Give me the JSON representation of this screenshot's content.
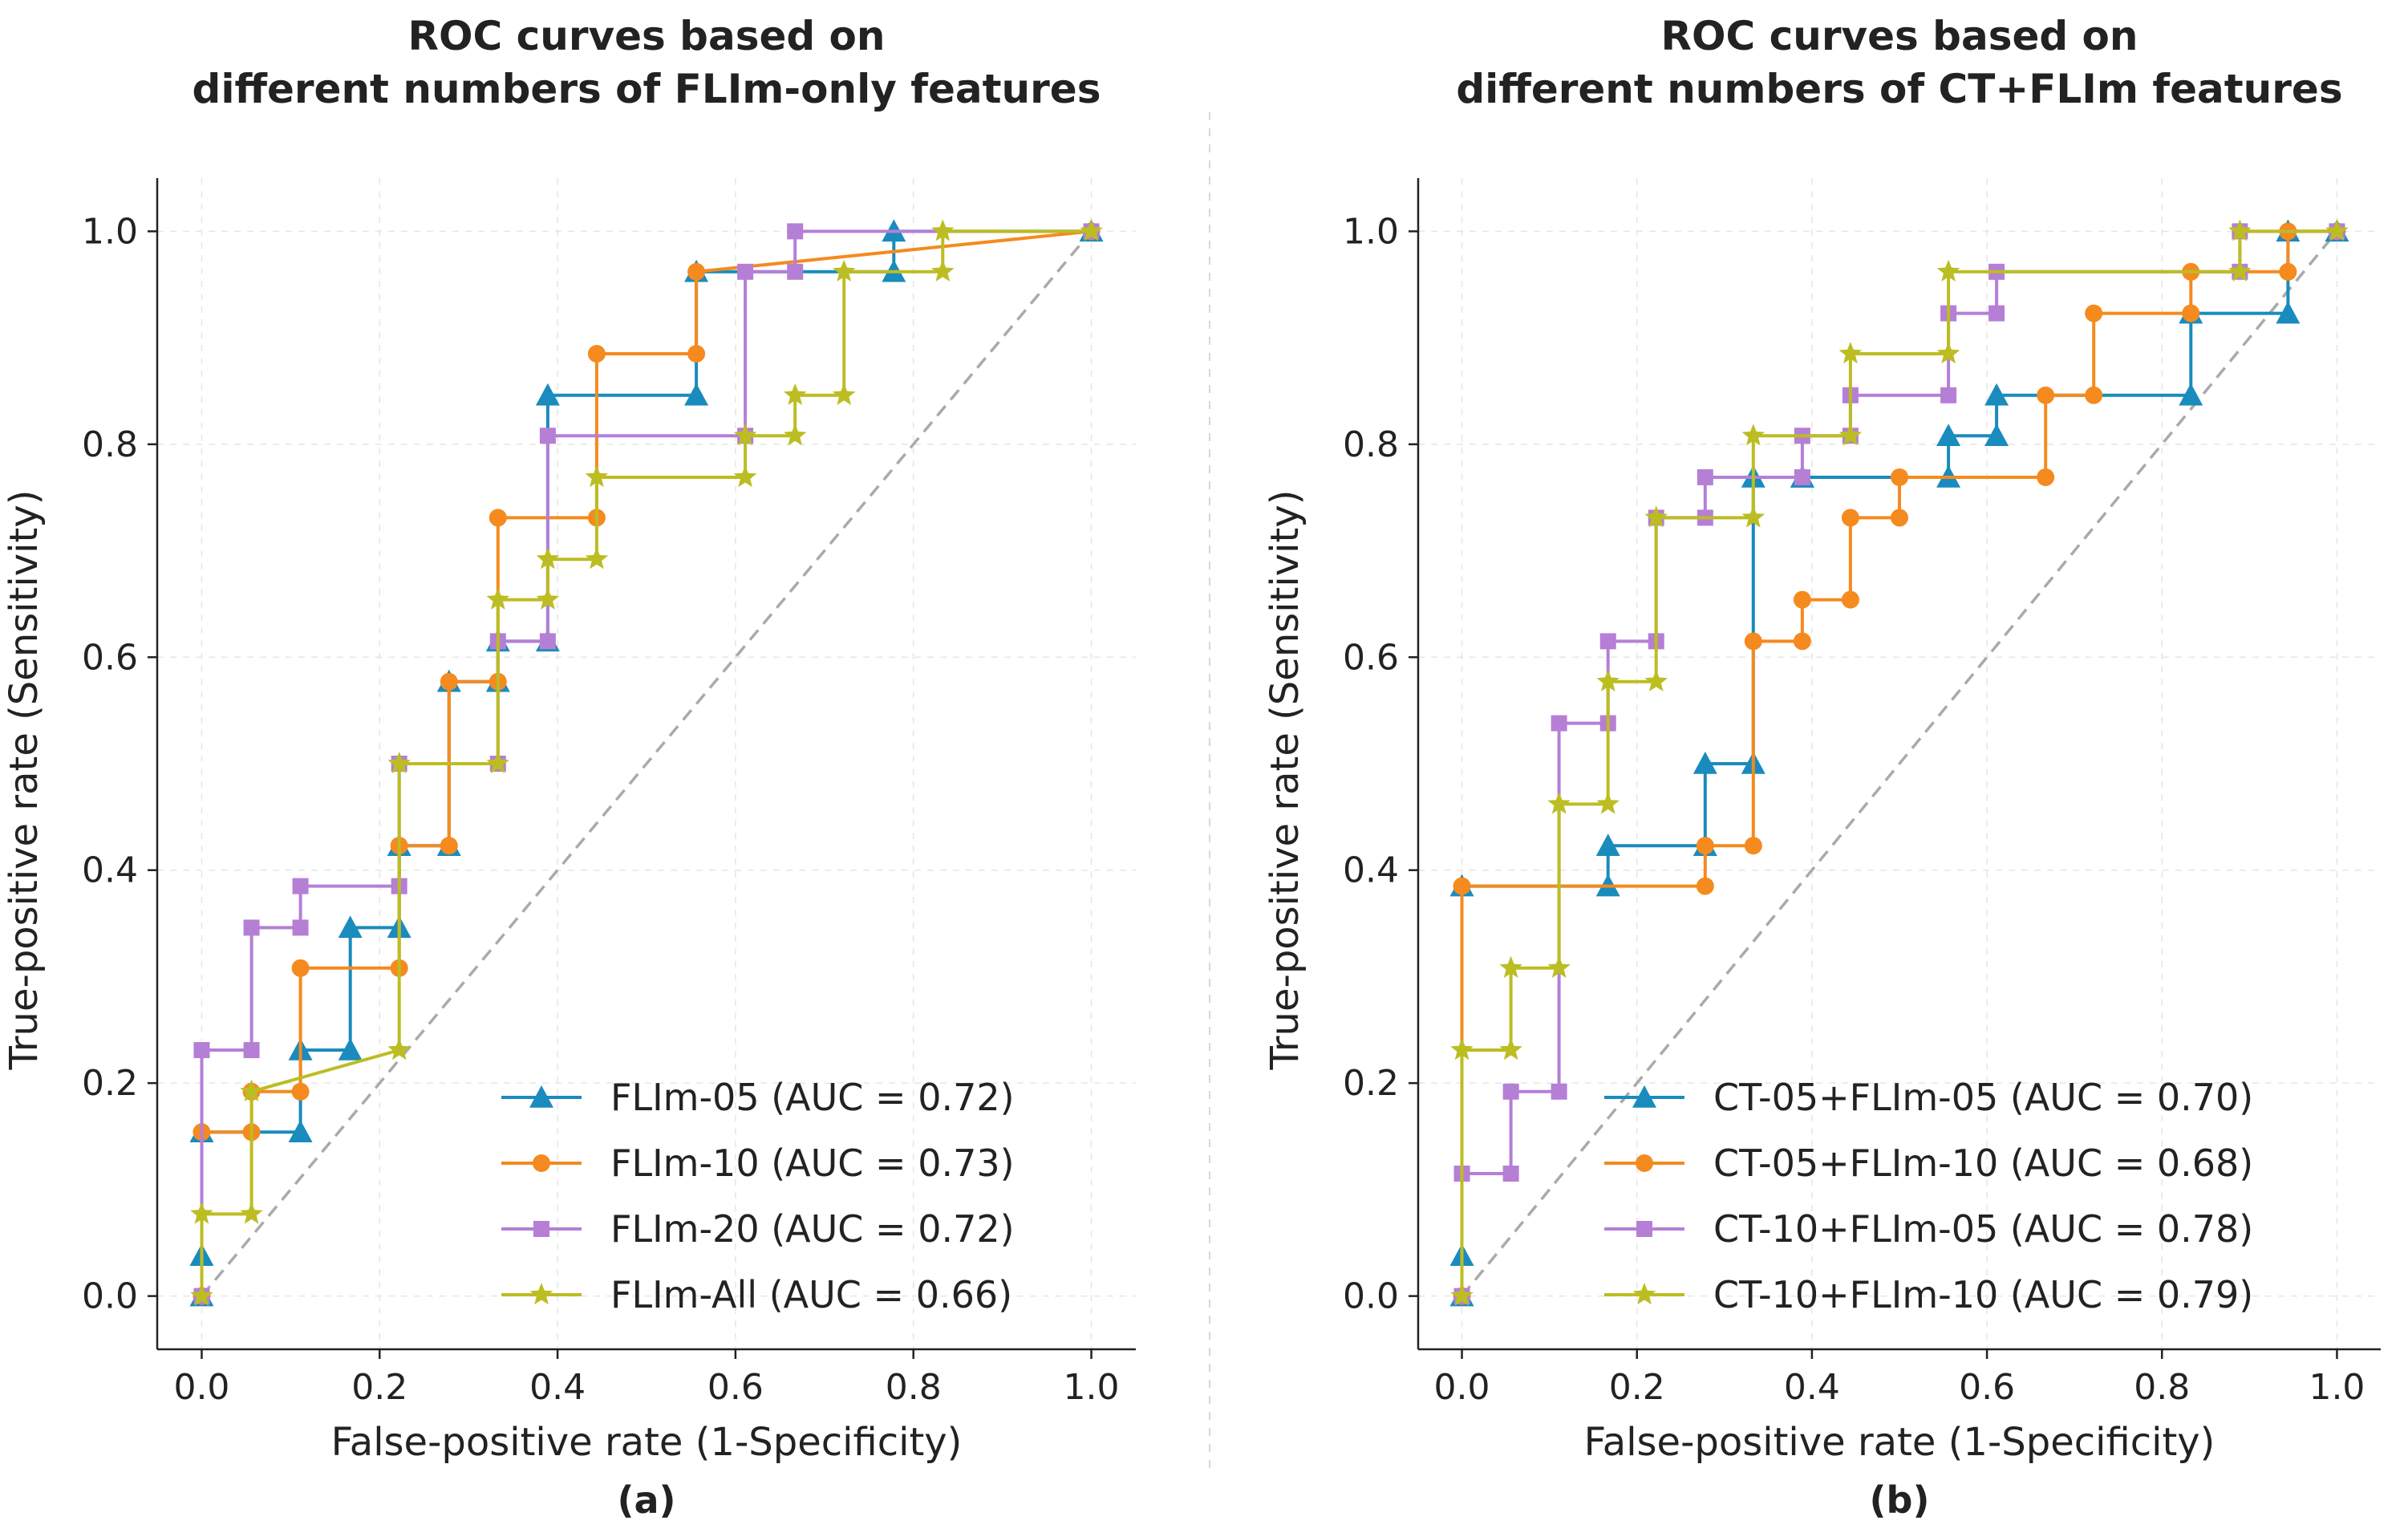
{
  "figure": {
    "divider": true
  },
  "chart_data": [
    {
      "type": "line",
      "panel_label": "(a)",
      "title_lines": [
        "ROC curves based on",
        "different numbers of FLIm-only features"
      ],
      "xlabel": "False-positive rate (1-Specificity)",
      "ylabel": "True-positive rate (Sensitivity)",
      "xlim": [
        -0.05,
        1.05
      ],
      "ylim": [
        -0.05,
        1.05
      ],
      "xticks": [
        "0.0",
        "0.2",
        "0.4",
        "0.6",
        "0.8",
        "1.0"
      ],
      "yticks": [
        "0.0",
        "0.2",
        "0.4",
        "0.6",
        "0.8",
        "1.0"
      ],
      "grid": true,
      "diagonal_reference": true,
      "legend_position": "lower-right",
      "series": [
        {
          "name": "FLIm-05 (AUC = 0.72)",
          "color": "#1a8bbd",
          "marker": "triangle",
          "x": [
            0,
            0,
            0,
            0.111,
            0.111,
            0.167,
            0.167,
            0.222,
            0.222,
            0.278,
            0.278,
            0.333,
            0.333,
            0.389,
            0.389,
            0.556,
            0.556,
            0.778,
            0.778,
            1.0
          ],
          "y": [
            0,
            0.038,
            0.154,
            0.154,
            0.231,
            0.231,
            0.346,
            0.346,
            0.423,
            0.423,
            0.577,
            0.577,
            0.615,
            0.615,
            0.846,
            0.846,
            0.962,
            0.962,
            1.0,
            1.0
          ]
        },
        {
          "name": "FLIm-10 (AUC = 0.73)",
          "color": "#f58a1f",
          "marker": "circle",
          "x": [
            0,
            0,
            0.056,
            0.056,
            0.111,
            0.111,
            0.222,
            0.222,
            0.278,
            0.278,
            0.333,
            0.333,
            0.444,
            0.444,
            0.556,
            0.556,
            1.0
          ],
          "y": [
            0,
            0.154,
            0.154,
            0.192,
            0.192,
            0.308,
            0.308,
            0.423,
            0.423,
            0.577,
            0.577,
            0.731,
            0.731,
            0.885,
            0.885,
            0.962,
            1.0
          ]
        },
        {
          "name": "FLIm-20 (AUC = 0.72)",
          "color": "#b57fd6",
          "marker": "square",
          "x": [
            0,
            0,
            0.056,
            0.056,
            0.111,
            0.111,
            0.222,
            0.222,
            0.333,
            0.333,
            0.389,
            0.389,
            0.611,
            0.611,
            0.667,
            0.667,
            1.0
          ],
          "y": [
            0,
            0.231,
            0.231,
            0.346,
            0.346,
            0.385,
            0.385,
            0.5,
            0.5,
            0.615,
            0.615,
            0.808,
            0.808,
            0.962,
            0.962,
            1.0,
            1.0
          ]
        },
        {
          "name": "FLIm-All (AUC = 0.66)",
          "color": "#bcbd22",
          "marker": "star",
          "x": [
            0,
            0,
            0.056,
            0.056,
            0.222,
            0.222,
            0.333,
            0.333,
            0.389,
            0.389,
            0.444,
            0.444,
            0.611,
            0.611,
            0.667,
            0.667,
            0.722,
            0.722,
            0.833,
            0.833,
            1.0
          ],
          "y": [
            0,
            0.077,
            0.077,
            0.192,
            0.231,
            0.5,
            0.5,
            0.654,
            0.654,
            0.692,
            0.692,
            0.769,
            0.769,
            0.808,
            0.808,
            0.846,
            0.846,
            0.962,
            0.962,
            1.0,
            1.0
          ]
        }
      ]
    },
    {
      "type": "line",
      "panel_label": "(b)",
      "title_lines": [
        "ROC curves based on",
        "different numbers of CT+FLIm features"
      ],
      "xlabel": "False-positive rate (1-Specificity)",
      "ylabel": "True-positive rate (Sensitivity)",
      "xlim": [
        -0.05,
        1.05
      ],
      "ylim": [
        -0.05,
        1.05
      ],
      "xticks": [
        "0.0",
        "0.2",
        "0.4",
        "0.6",
        "0.8",
        "1.0"
      ],
      "yticks": [
        "0.0",
        "0.2",
        "0.4",
        "0.6",
        "0.8",
        "1.0"
      ],
      "grid": true,
      "diagonal_reference": true,
      "legend_position": "lower-right",
      "series": [
        {
          "name": "CT-05+FLIm-05 (AUC = 0.70)",
          "color": "#1a8bbd",
          "marker": "triangle",
          "x": [
            0,
            0,
            0,
            0.167,
            0.167,
            0.278,
            0.278,
            0.333,
            0.333,
            0.389,
            0.389,
            0.556,
            0.556,
            0.611,
            0.611,
            0.833,
            0.833,
            0.944,
            0.944,
            1.0
          ],
          "y": [
            0,
            0.038,
            0.385,
            0.385,
            0.423,
            0.423,
            0.5,
            0.5,
            0.769,
            0.769,
            0.769,
            0.769,
            0.808,
            0.808,
            0.846,
            0.846,
            0.923,
            0.923,
            1.0,
            1.0
          ]
        },
        {
          "name": "CT-05+FLIm-10 (AUC = 0.68)",
          "color": "#f58a1f",
          "marker": "circle",
          "x": [
            0,
            0,
            0.278,
            0.278,
            0.333,
            0.333,
            0.389,
            0.389,
            0.444,
            0.444,
            0.5,
            0.5,
            0.667,
            0.667,
            0.722,
            0.722,
            0.833,
            0.833,
            0.944,
            0.944,
            1.0
          ],
          "y": [
            0,
            0.385,
            0.385,
            0.423,
            0.423,
            0.615,
            0.615,
            0.654,
            0.654,
            0.731,
            0.731,
            0.769,
            0.769,
            0.846,
            0.846,
            0.923,
            0.923,
            0.962,
            0.962,
            1.0,
            1.0
          ]
        },
        {
          "name": "CT-10+FLIm-05 (AUC = 0.78)",
          "color": "#b57fd6",
          "marker": "square",
          "x": [
            0,
            0,
            0.056,
            0.056,
            0.111,
            0.111,
            0.167,
            0.167,
            0.222,
            0.222,
            0.278,
            0.278,
            0.389,
            0.389,
            0.444,
            0.444,
            0.556,
            0.556,
            0.611,
            0.611,
            0.889,
            0.889,
            1.0
          ],
          "y": [
            0,
            0.115,
            0.115,
            0.192,
            0.192,
            0.538,
            0.538,
            0.615,
            0.615,
            0.731,
            0.731,
            0.769,
            0.769,
            0.808,
            0.808,
            0.846,
            0.846,
            0.923,
            0.923,
            0.962,
            0.962,
            1.0,
            1.0
          ]
        },
        {
          "name": "CT-10+FLIm-10 (AUC = 0.79)",
          "color": "#bcbd22",
          "marker": "star",
          "x": [
            0,
            0,
            0.056,
            0.056,
            0.111,
            0.111,
            0.167,
            0.167,
            0.222,
            0.222,
            0.333,
            0.333,
            0.444,
            0.444,
            0.556,
            0.556,
            0.889,
            0.889,
            1.0
          ],
          "y": [
            0,
            0.231,
            0.231,
            0.308,
            0.308,
            0.462,
            0.462,
            0.577,
            0.577,
            0.731,
            0.731,
            0.808,
            0.808,
            0.885,
            0.885,
            0.962,
            0.962,
            1.0,
            1.0
          ]
        }
      ]
    }
  ]
}
